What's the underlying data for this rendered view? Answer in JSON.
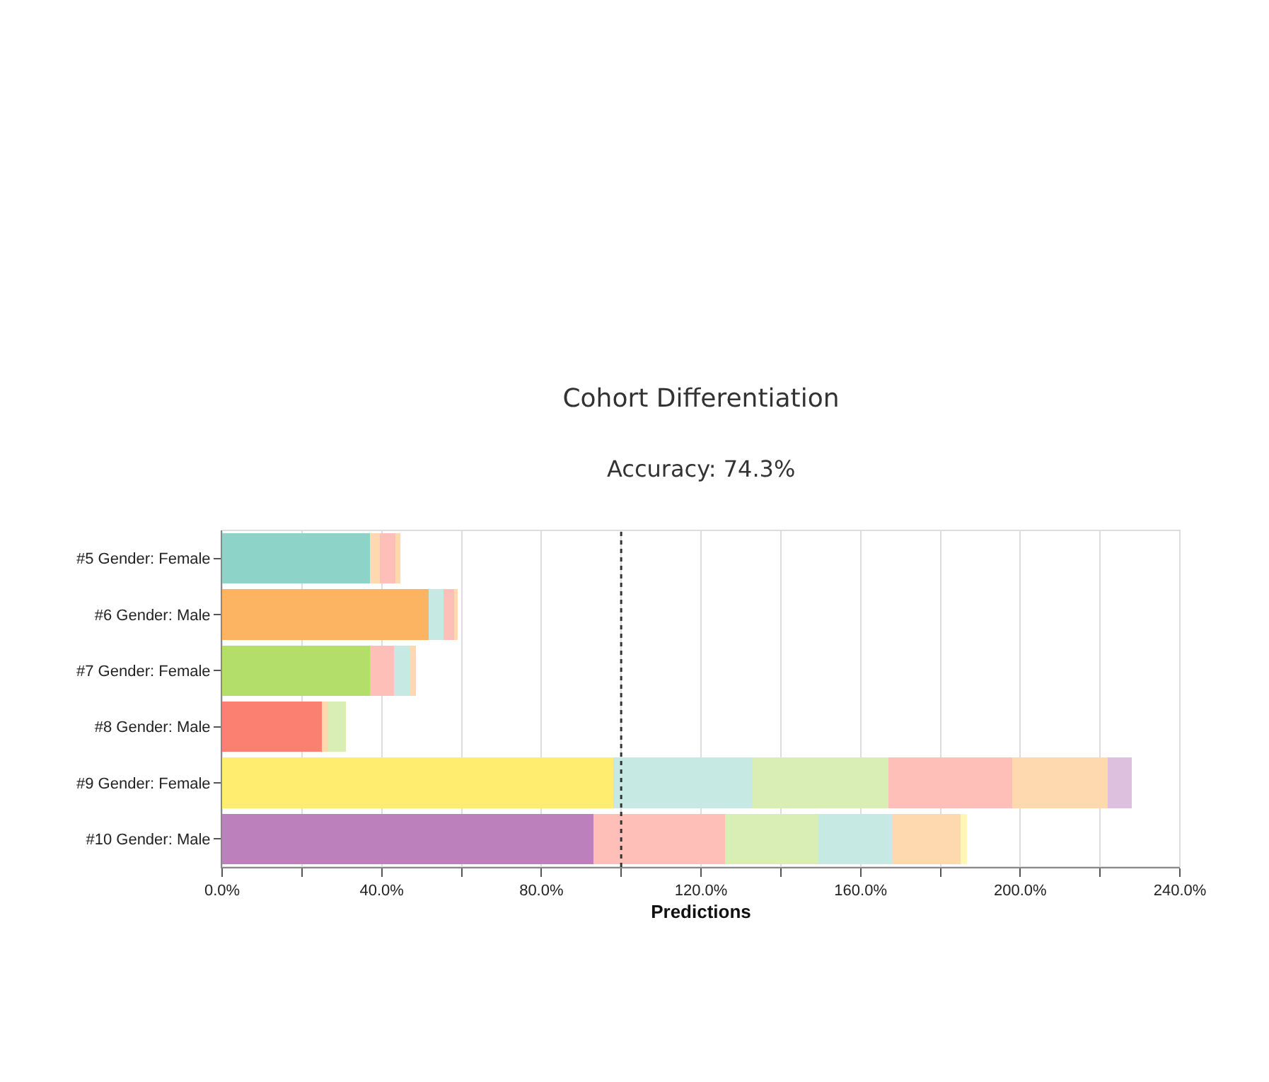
{
  "chart_data": {
    "type": "bar",
    "orientation": "horizontal",
    "stacked": true,
    "title": "Cohort Differentiation",
    "subtitle": "Accuracy: 74.3%",
    "xlabel": "Predictions",
    "categories": [
      "#5 Gender: Female",
      "#6 Gender: Male",
      "#7 Gender: Female",
      "#8 Gender: Male",
      "#9 Gender: Female",
      "#10 Gender: Male"
    ],
    "series": [
      {
        "values": [
          37,
          51.7,
          37,
          25,
          98,
          93
        ],
        "colors": [
          "#8dd3c7",
          "#fdb462",
          "#b3de69",
          "#fb8072",
          "#ffed6f",
          "#bc80bd"
        ]
      },
      {
        "values": [
          2.5,
          3.7,
          6,
          1.5,
          35,
          33
        ],
        "colors": [
          "#fed9b0",
          "#c6e9e4",
          "#fdbfb8",
          "#fed9b0",
          "#c6e9e4",
          "#fdbfb8"
        ]
      },
      {
        "values": [
          4,
          2.8,
          4,
          4.5,
          34,
          23.5
        ],
        "colors": [
          "#fdbfb8",
          "#fdbfb8",
          "#c6e9e4",
          "#d9eeb4",
          "#d9eeb4",
          "#d9eeb4"
        ]
      },
      {
        "values": [
          1.1,
          0.8,
          1.5,
          null,
          31,
          18.5
        ],
        "colors": [
          "#fed9b0",
          "#fed9b0",
          "#fed9b0",
          "#fed9b0",
          "#fdbfb8",
          "#c6e9e4"
        ]
      },
      {
        "values": [
          null,
          null,
          null,
          null,
          24,
          17
        ],
        "colors": [
          "#fed9b0",
          "#fed9b0",
          "#fed9b0",
          "#fed9b0",
          "#fed9b0",
          "#fed9b0"
        ]
      },
      {
        "values": [
          null,
          null,
          null,
          null,
          6,
          1.7
        ],
        "colors": [
          "#ddc0de",
          "#ddc0de",
          "#ddc0de",
          "#ddc0de",
          "#ddc0de",
          "#fff6b7"
        ]
      }
    ],
    "xlim": [
      0,
      240
    ],
    "xticks": [
      {
        "value": 0,
        "label": "0.0%"
      },
      {
        "value": 20,
        "label": null
      },
      {
        "value": 40,
        "label": "40.0%"
      },
      {
        "value": 60,
        "label": null
      },
      {
        "value": 80,
        "label": "80.0%"
      },
      {
        "value": 100,
        "label": null
      },
      {
        "value": 120,
        "label": "120.0%"
      },
      {
        "value": 140,
        "label": null
      },
      {
        "value": 160,
        "label": "160.0%"
      },
      {
        "value": 180,
        "label": null
      },
      {
        "value": 200,
        "label": "200.0%"
      },
      {
        "value": 220,
        "label": null
      },
      {
        "value": 240,
        "label": "240.0%"
      }
    ],
    "grid": true,
    "ref_lines": [
      {
        "axis": "x",
        "value": 100,
        "line_style": "dotted",
        "color": "#333333"
      }
    ]
  }
}
